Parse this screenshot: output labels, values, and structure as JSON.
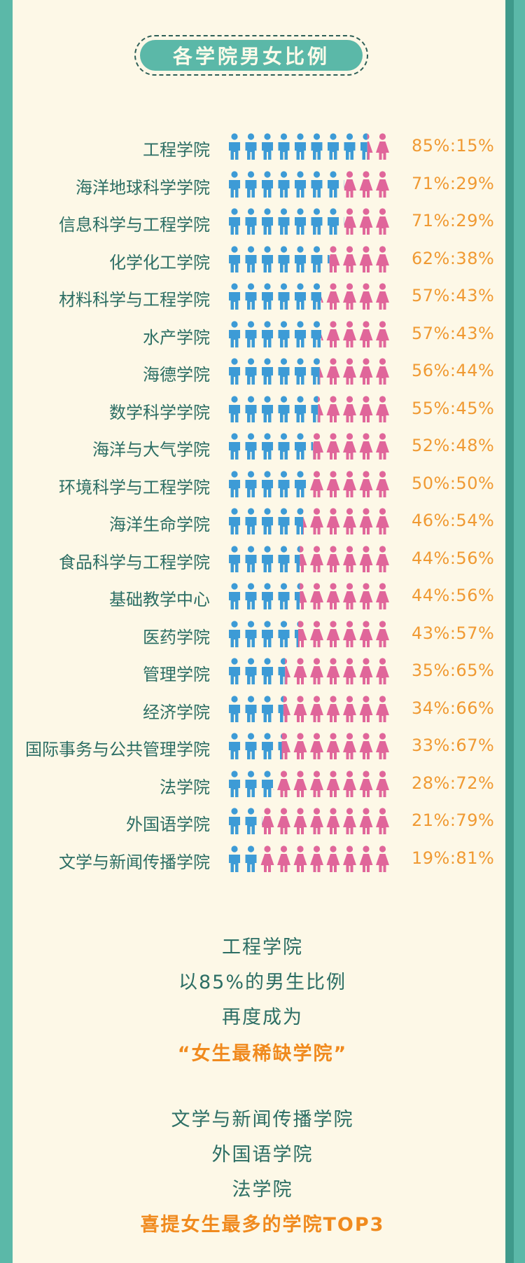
{
  "title": "各学院男女比例",
  "colors": {
    "male": "#3d9bd6",
    "female": "#e0669a",
    "teal": "#5bb8a8",
    "text": "#2c6e64",
    "orange": "#f09a33"
  },
  "chart_data": {
    "type": "pictograph",
    "icons_per_row": 10,
    "series": [
      {
        "name": "男",
        "icon": "male-person-icon"
      },
      {
        "name": "女",
        "icon": "female-person-icon"
      }
    ],
    "rows": [
      {
        "label": "工程学院",
        "male": 85,
        "female": 15,
        "ratio": "85%:15%"
      },
      {
        "label": "海洋地球科学学院",
        "male": 71,
        "female": 29,
        "ratio": "71%:29%"
      },
      {
        "label": "信息科学与工程学院",
        "male": 71,
        "female": 29,
        "ratio": "71%:29%"
      },
      {
        "label": "化学化工学院",
        "male": 62,
        "female": 38,
        "ratio": "62%:38%"
      },
      {
        "label": "材料科学与工程学院",
        "male": 57,
        "female": 43,
        "ratio": "57%:43%"
      },
      {
        "label": "水产学院",
        "male": 57,
        "female": 43,
        "ratio": "57%:43%"
      },
      {
        "label": "海德学院",
        "male": 56,
        "female": 44,
        "ratio": "56%:44%"
      },
      {
        "label": "数学科学学院",
        "male": 55,
        "female": 45,
        "ratio": "55%:45%"
      },
      {
        "label": "海洋与大气学院",
        "male": 52,
        "female": 48,
        "ratio": "52%:48%"
      },
      {
        "label": "环境科学与工程学院",
        "male": 50,
        "female": 50,
        "ratio": "50%:50%"
      },
      {
        "label": "海洋生命学院",
        "male": 46,
        "female": 54,
        "ratio": "46%:54%"
      },
      {
        "label": "食品科学与工程学院",
        "male": 44,
        "female": 56,
        "ratio": "44%:56%"
      },
      {
        "label": "基础教学中心",
        "male": 44,
        "female": 56,
        "ratio": "44%:56%"
      },
      {
        "label": "医药学院",
        "male": 43,
        "female": 57,
        "ratio": "43%:57%"
      },
      {
        "label": "管理学院",
        "male": 35,
        "female": 65,
        "ratio": "35%:65%"
      },
      {
        "label": "经济学院",
        "male": 34,
        "female": 66,
        "ratio": "34%:66%"
      },
      {
        "label": "国际事务与公共管理学院",
        "male": 33,
        "female": 67,
        "ratio": "33%:67%"
      },
      {
        "label": "法学院",
        "male": 28,
        "female": 72,
        "ratio": "28%:72%"
      },
      {
        "label": "外国语学院",
        "male": 21,
        "female": 79,
        "ratio": "21%:79%"
      },
      {
        "label": "文学与新闻传播学院",
        "male": 19,
        "female": 81,
        "ratio": "19%:81%"
      }
    ]
  },
  "summary": {
    "line1": "工程学院",
    "line2": "以85%的男生比例",
    "line3": "再度成为",
    "highlight1": "“女生最稀缺学院”",
    "line4": "文学与新闻传播学院",
    "line5": "外国语学院",
    "line6": "法学院",
    "highlight2": "喜提女生最多的学院TOP3"
  }
}
